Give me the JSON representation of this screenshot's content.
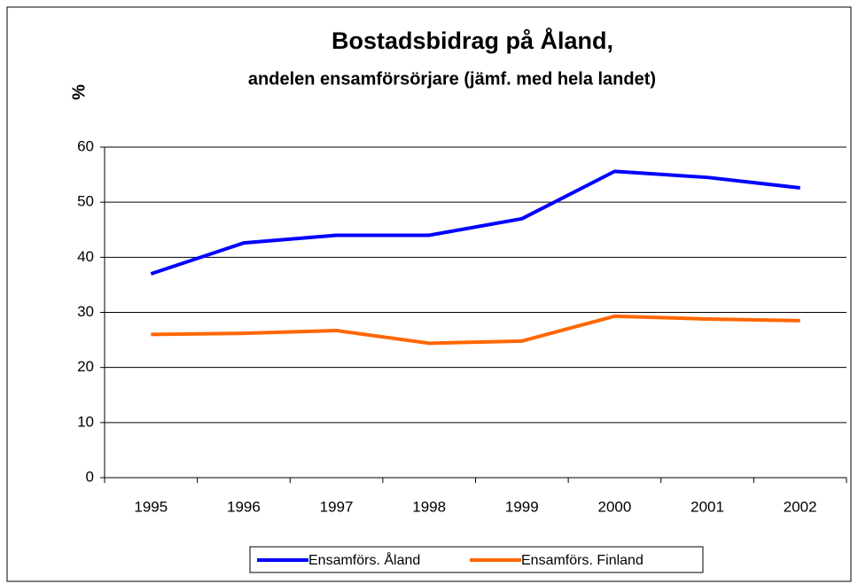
{
  "chart_data": {
    "type": "line",
    "title": "Bostadsbidrag på Åland,",
    "subtitle": "andelen ensamförsörjare (jämf. med hela landet)",
    "y_label": "%",
    "categories": [
      "1995",
      "1996",
      "1997",
      "1998",
      "1999",
      "2000",
      "2001",
      "2002"
    ],
    "series": [
      {
        "name": "Ensamförs. Åland",
        "color": "#0000ff",
        "values": [
          37,
          42.6,
          44,
          44,
          47,
          55.6,
          54.5,
          52.6
        ]
      },
      {
        "name": "Ensamförs.  Finland",
        "color": "#ff6600",
        "values": [
          26,
          26.2,
          26.7,
          24.4,
          24.8,
          29.3,
          28.8,
          28.5
        ]
      }
    ],
    "ylim": [
      0,
      60
    ],
    "yticks": [
      0,
      10,
      20,
      30,
      40,
      50,
      60
    ],
    "grid": true,
    "legend": "bottom"
  }
}
